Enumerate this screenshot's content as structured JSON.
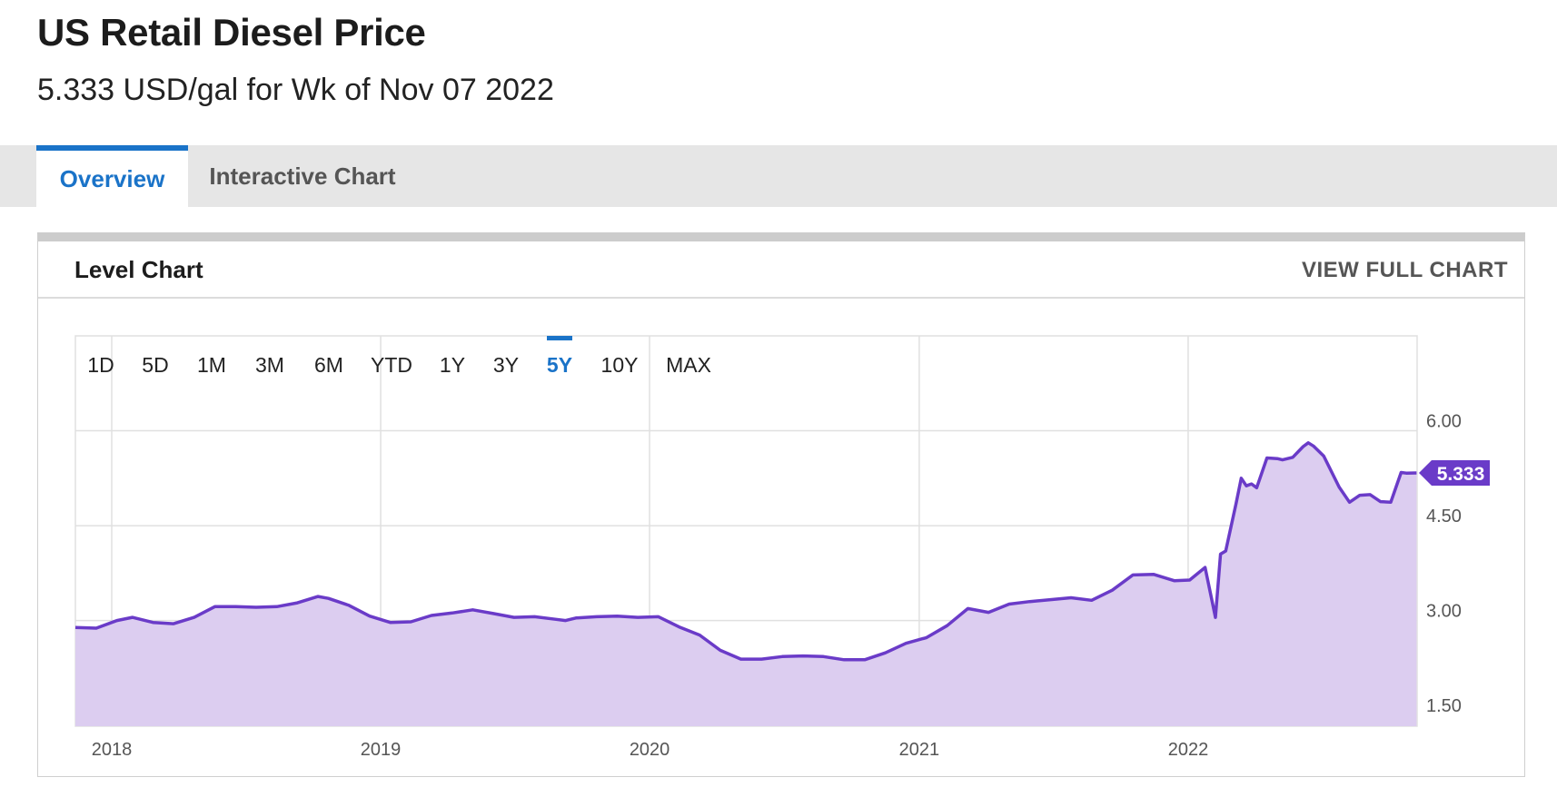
{
  "header": {
    "title": "US Retail Diesel Price",
    "subtitle": "5.333 USD/gal for Wk of Nov 07 2022"
  },
  "tabs": [
    {
      "label": "Overview",
      "active": true
    },
    {
      "label": "Interactive Chart",
      "active": false
    }
  ],
  "card": {
    "title": "Level Chart",
    "full_chart_label": "VIEW FULL CHART"
  },
  "ranges": [
    {
      "label": "1D",
      "active": false
    },
    {
      "label": "5D",
      "active": false
    },
    {
      "label": "1M",
      "active": false
    },
    {
      "label": "3M",
      "active": false
    },
    {
      "label": "6M",
      "active": false
    },
    {
      "label": "YTD",
      "active": false
    },
    {
      "label": "1Y",
      "active": false
    },
    {
      "label": "3Y",
      "active": false
    },
    {
      "label": "5Y",
      "active": true
    },
    {
      "label": "10Y",
      "active": false
    },
    {
      "label": "MAX",
      "active": false
    }
  ],
  "colors": {
    "accent": "#1a73c8",
    "series": "#6a3bc8",
    "fill": "#dccdf0",
    "grid": "#e0e0e0"
  },
  "chart_data": {
    "type": "area",
    "title": "",
    "xlabel": "",
    "ylabel": "",
    "ylim": [
      1.33,
      7.5
    ],
    "y_ticks": [
      "1.50",
      "3.00",
      "4.50",
      "6.00"
    ],
    "x_ticks": [
      "2018",
      "2019",
      "2020",
      "2021",
      "2022"
    ],
    "last_value_label": "5.333",
    "x": [
      "2017-11-13",
      "2017-12-11",
      "2018-01-08",
      "2018-01-29",
      "2018-02-26",
      "2018-03-26",
      "2018-04-23",
      "2018-05-21",
      "2018-06-18",
      "2018-07-16",
      "2018-08-13",
      "2018-09-10",
      "2018-10-08",
      "2018-10-22",
      "2018-11-19",
      "2018-12-17",
      "2019-01-14",
      "2019-02-11",
      "2019-03-11",
      "2019-04-08",
      "2019-05-06",
      "2019-06-03",
      "2019-07-01",
      "2019-07-29",
      "2019-08-26",
      "2019-09-09",
      "2019-09-23",
      "2019-10-21",
      "2019-11-18",
      "2019-12-16",
      "2020-01-13",
      "2020-02-10",
      "2020-03-09",
      "2020-04-06",
      "2020-05-04",
      "2020-06-01",
      "2020-06-29",
      "2020-07-27",
      "2020-08-24",
      "2020-09-21",
      "2020-10-19",
      "2020-11-16",
      "2020-12-14",
      "2021-01-11",
      "2021-02-08",
      "2021-03-08",
      "2021-04-05",
      "2021-05-03",
      "2021-05-31",
      "2021-06-28",
      "2021-07-26",
      "2021-08-23",
      "2021-09-20",
      "2021-10-18",
      "2021-11-15",
      "2021-12-13",
      "2022-01-03",
      "2022-01-24",
      "2022-02-07",
      "2022-02-14",
      "2022-02-21",
      "2022-03-07",
      "2022-03-14",
      "2022-03-21",
      "2022-03-28",
      "2022-04-04",
      "2022-04-18",
      "2022-05-02",
      "2022-05-09",
      "2022-05-23",
      "2022-06-06",
      "2022-06-13",
      "2022-06-20",
      "2022-07-04",
      "2022-07-25",
      "2022-08-08",
      "2022-08-22",
      "2022-09-05",
      "2022-09-19",
      "2022-10-03",
      "2022-10-17",
      "2022-10-24",
      "2022-11-07"
    ],
    "series": [
      {
        "values": [
          2.89,
          2.88,
          3.0,
          3.05,
          2.97,
          2.95,
          3.05,
          3.22,
          3.22,
          3.21,
          3.22,
          3.28,
          3.38,
          3.35,
          3.24,
          3.07,
          2.97,
          2.98,
          3.08,
          3.12,
          3.17,
          3.11,
          3.05,
          3.06,
          3.02,
          3.0,
          3.04,
          3.06,
          3.07,
          3.05,
          3.06,
          2.9,
          2.77,
          2.53,
          2.39,
          2.39,
          2.43,
          2.44,
          2.43,
          2.38,
          2.38,
          2.49,
          2.64,
          2.73,
          2.92,
          3.19,
          3.13,
          3.26,
          3.3,
          3.33,
          3.36,
          3.32,
          3.48,
          3.72,
          3.73,
          3.63,
          3.64,
          3.84,
          3.05,
          4.05,
          4.1,
          4.85,
          5.25,
          5.13,
          5.16,
          5.1,
          5.57,
          5.56,
          5.54,
          5.58,
          5.75,
          5.81,
          5.76,
          5.6,
          5.11,
          4.87,
          4.98,
          4.99,
          4.88,
          4.87,
          5.34,
          5.33,
          5.333
        ]
      }
    ]
  }
}
